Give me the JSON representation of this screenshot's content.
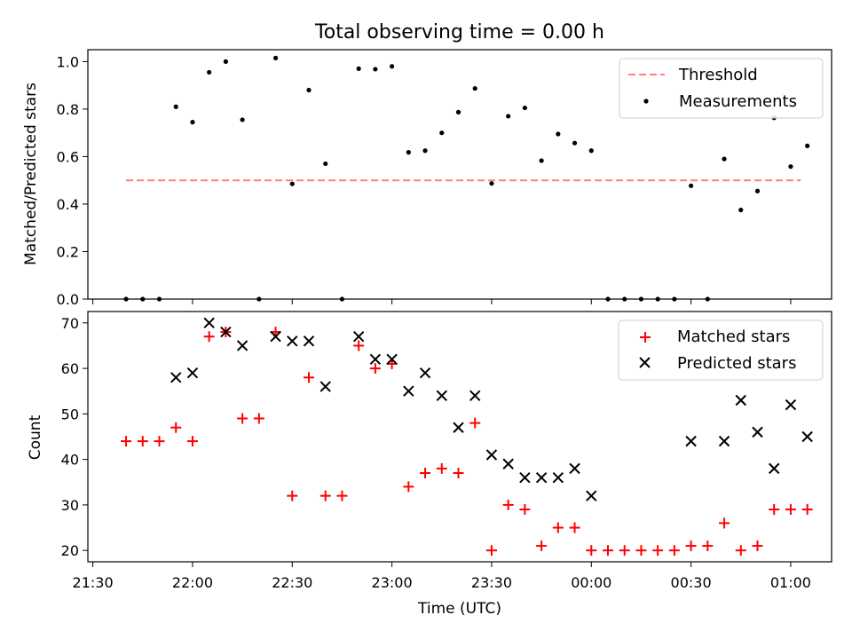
{
  "chart_data": [
    {
      "type": "scatter",
      "title": "Total observing time = 0.00 h",
      "xlabel": "",
      "ylabel": "Matched/Predicted stars",
      "ylim": [
        0,
        1.05
      ],
      "yticks": [
        "0.0",
        "0.2",
        "0.4",
        "0.6",
        "0.8",
        "1.0"
      ],
      "legend_position": "upper right",
      "threshold": {
        "name": "Threshold",
        "value": 0.5,
        "color": "#ff7f7f",
        "x_start": "21:40",
        "x_end": "01:03"
      },
      "series": [
        {
          "name": "Measurements",
          "color": "#000000",
          "points": [
            [
              "21:40",
              0.0
            ],
            [
              "21:45",
              0.0
            ],
            [
              "21:50",
              0.0
            ],
            [
              "21:55",
              0.81
            ],
            [
              "22:00",
              0.745
            ],
            [
              "22:05",
              0.955
            ],
            [
              "22:10",
              1.0
            ],
            [
              "22:15",
              0.755
            ],
            [
              "22:20",
              0.0
            ],
            [
              "22:25",
              1.015
            ],
            [
              "22:30",
              0.485
            ],
            [
              "22:35",
              0.88
            ],
            [
              "22:40",
              0.57
            ],
            [
              "22:45",
              0.0
            ],
            [
              "22:50",
              0.97
            ],
            [
              "22:55",
              0.968
            ],
            [
              "23:00",
              0.98
            ],
            [
              "23:05",
              0.618
            ],
            [
              "23:10",
              0.625
            ],
            [
              "23:15",
              0.7
            ],
            [
              "23:20",
              0.787
            ],
            [
              "23:25",
              0.887
            ],
            [
              "23:30",
              0.487
            ],
            [
              "23:35",
              0.77
            ],
            [
              "23:40",
              0.805
            ],
            [
              "23:45",
              0.583
            ],
            [
              "23:50",
              0.695
            ],
            [
              "23:55",
              0.657
            ],
            [
              "00:00",
              0.625
            ],
            [
              "00:05",
              0.0
            ],
            [
              "00:10",
              0.0
            ],
            [
              "00:15",
              0.0
            ],
            [
              "00:20",
              0.0
            ],
            [
              "00:25",
              0.0
            ],
            [
              "00:30",
              0.477
            ],
            [
              "00:35",
              0.0
            ],
            [
              "00:40",
              0.59
            ],
            [
              "00:45",
              0.375
            ],
            [
              "00:50",
              0.455
            ],
            [
              "00:55",
              0.763
            ],
            [
              "01:00",
              0.558
            ],
            [
              "01:05",
              0.645
            ]
          ]
        }
      ]
    },
    {
      "type": "scatter",
      "title": "",
      "xlabel": "Time (UTC)",
      "ylabel": "Count",
      "ylim": [
        17.5,
        72.5
      ],
      "yticks": [
        "20",
        "30",
        "40",
        "50",
        "60",
        "70"
      ],
      "xticks": [
        "21:30",
        "22:00",
        "22:30",
        "23:00",
        "23:30",
        "00:00",
        "00:30",
        "01:00"
      ],
      "legend_position": "upper right",
      "series": [
        {
          "name": "Matched stars",
          "marker": "+",
          "color": "#ff0000",
          "points": [
            [
              "21:40",
              44
            ],
            [
              "21:45",
              44
            ],
            [
              "21:50",
              44
            ],
            [
              "21:55",
              47
            ],
            [
              "22:00",
              44
            ],
            [
              "22:05",
              67
            ],
            [
              "22:10",
              68
            ],
            [
              "22:15",
              49
            ],
            [
              "22:20",
              49
            ],
            [
              "22:25",
              68
            ],
            [
              "22:30",
              32
            ],
            [
              "22:35",
              58
            ],
            [
              "22:40",
              32
            ],
            [
              "22:45",
              32
            ],
            [
              "22:50",
              65
            ],
            [
              "22:55",
              60
            ],
            [
              "23:00",
              61
            ],
            [
              "23:05",
              34
            ],
            [
              "23:10",
              37
            ],
            [
              "23:15",
              38
            ],
            [
              "23:20",
              37
            ],
            [
              "23:25",
              48
            ],
            [
              "23:30",
              20
            ],
            [
              "23:35",
              30
            ],
            [
              "23:40",
              29
            ],
            [
              "23:45",
              21
            ],
            [
              "23:50",
              25
            ],
            [
              "23:55",
              25
            ],
            [
              "00:00",
              20
            ],
            [
              "00:05",
              20
            ],
            [
              "00:10",
              20
            ],
            [
              "00:15",
              20
            ],
            [
              "00:20",
              20
            ],
            [
              "00:25",
              20
            ],
            [
              "00:30",
              21
            ],
            [
              "00:35",
              21
            ],
            [
              "00:40",
              26
            ],
            [
              "00:45",
              20
            ],
            [
              "00:50",
              21
            ],
            [
              "00:55",
              29
            ],
            [
              "01:00",
              29
            ],
            [
              "01:05",
              29
            ]
          ]
        },
        {
          "name": "Predicted stars",
          "marker": "x",
          "color": "#000000",
          "points": [
            [
              "21:55",
              58
            ],
            [
              "22:00",
              59
            ],
            [
              "22:05",
              70
            ],
            [
              "22:10",
              68
            ],
            [
              "22:15",
              65
            ],
            [
              "22:25",
              67
            ],
            [
              "22:30",
              66
            ],
            [
              "22:35",
              66
            ],
            [
              "22:40",
              56
            ],
            [
              "22:50",
              67
            ],
            [
              "22:55",
              62
            ],
            [
              "23:00",
              62
            ],
            [
              "23:05",
              55
            ],
            [
              "23:10",
              59
            ],
            [
              "23:15",
              54
            ],
            [
              "23:20",
              47
            ],
            [
              "23:25",
              54
            ],
            [
              "23:30",
              41
            ],
            [
              "23:35",
              39
            ],
            [
              "23:40",
              36
            ],
            [
              "23:45",
              36
            ],
            [
              "23:50",
              36
            ],
            [
              "23:55",
              38
            ],
            [
              "00:00",
              32
            ],
            [
              "00:30",
              44
            ],
            [
              "00:40",
              44
            ],
            [
              "00:45",
              53
            ],
            [
              "00:50",
              46
            ],
            [
              "00:55",
              38
            ],
            [
              "01:00",
              52
            ],
            [
              "01:05",
              45
            ]
          ]
        }
      ]
    }
  ]
}
